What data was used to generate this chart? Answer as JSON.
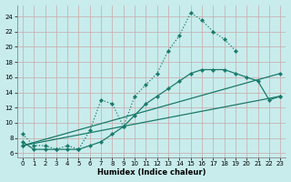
{
  "xlabel": "Humidex (Indice chaleur)",
  "bg_color": "#c8ecec",
  "grid_color": "#c8a8a8",
  "line_color": "#1a7a6a",
  "xlim": [
    -0.5,
    23.5
  ],
  "ylim": [
    5.5,
    25.5
  ],
  "xticks": [
    0,
    1,
    2,
    3,
    4,
    5,
    6,
    7,
    8,
    9,
    10,
    11,
    12,
    13,
    14,
    15,
    16,
    17,
    18,
    19,
    20,
    21,
    22,
    23
  ],
  "yticks": [
    6,
    8,
    10,
    12,
    14,
    16,
    18,
    20,
    22,
    24
  ],
  "series": [
    {
      "x": [
        0,
        1,
        2,
        3,
        4,
        5,
        6,
        7,
        8,
        9,
        10,
        11,
        12,
        13,
        14,
        15,
        16,
        17,
        18,
        19
      ],
      "y": [
        8.5,
        7.0,
        7.0,
        6.5,
        7.0,
        6.5,
        9.0,
        13.0,
        12.5,
        9.5,
        13.5,
        15.0,
        16.5,
        19.5,
        21.5,
        24.5,
        23.5,
        22.0,
        21.0,
        19.5
      ],
      "linestyle": "dotted",
      "marker": true
    },
    {
      "x": [
        0,
        1,
        2,
        3,
        4,
        5,
        6,
        7,
        8,
        9,
        10,
        11,
        12,
        13,
        14,
        15,
        16,
        17,
        18,
        19,
        20,
        21,
        22,
        23
      ],
      "y": [
        7.5,
        6.5,
        6.5,
        6.5,
        6.5,
        6.5,
        7.0,
        7.5,
        8.5,
        9.5,
        11.0,
        12.5,
        13.5,
        14.5,
        15.5,
        16.5,
        17.0,
        17.0,
        17.0,
        16.5,
        16.0,
        15.5,
        13.0,
        13.5
      ],
      "linestyle": "solid",
      "marker": true
    },
    {
      "x": [
        0,
        23
      ],
      "y": [
        7.0,
        13.5
      ],
      "linestyle": "solid",
      "marker": true
    },
    {
      "x": [
        0,
        23
      ],
      "y": [
        7.0,
        16.5
      ],
      "linestyle": "solid",
      "marker": true
    }
  ]
}
